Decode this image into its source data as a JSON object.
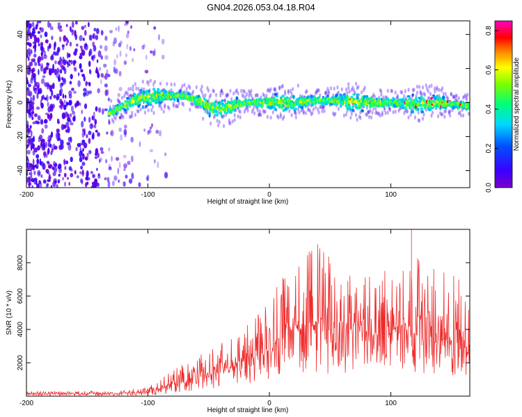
{
  "figure_title": "GN04.2026.053.04.18.R04",
  "colors": {
    "snr_line": "#ee2b2b",
    "spectrogram_low": "#7a1fe0",
    "spectrogram_high": "#ff0000"
  },
  "chart_data": [
    {
      "type": "heatmap",
      "title": "",
      "xlabel": "Height of straight line (km)",
      "ylabel": "Frequency (Hz)",
      "xlim": [
        -200,
        165
      ],
      "ylim": [
        -50,
        48
      ],
      "xticks": [
        -200,
        -100,
        0,
        100
      ],
      "yticks": [
        -40,
        -20,
        0,
        20,
        40
      ],
      "grid": false,
      "colorbar": {
        "label": "Normalized spectral amplitude",
        "range": [
          0,
          0.85
        ],
        "ticks": [
          0,
          0.2,
          0.4,
          0.6,
          0.8
        ],
        "tick_labels": [
          "0.0",
          "0.2",
          "0.4",
          "0.6",
          "0.8"
        ],
        "colormap": "rainbow (violet → blue → cyan → green → yellow → red → magenta)"
      },
      "regions": [
        {
          "x_range": [
            -200,
            -105
          ],
          "y_range": [
            -50,
            48
          ],
          "amplitude": 0.07,
          "description": "broadband noise across all frequencies"
        },
        {
          "x_range": [
            -105,
            165
          ],
          "y_range": [
            -6,
            6
          ],
          "amplitude": 0.35,
          "description": "signal band centered near 0 Hz"
        }
      ],
      "band_center": {
        "x": [
          -130,
          -110,
          -90,
          -70,
          -55,
          -45,
          -35,
          -20,
          0,
          20,
          40,
          60,
          80,
          100,
          120,
          140,
          165
        ],
        "y": [
          -6,
          2,
          4,
          4,
          0,
          -4,
          -3,
          0,
          0,
          0,
          1,
          1,
          0,
          0,
          -1,
          0,
          -2
        ]
      },
      "peak_amplitude": 0.85
    },
    {
      "type": "line",
      "title": "",
      "xlabel": "Height of straight line (km)",
      "ylabel": "SNR (10 * v/v)",
      "xlim": [
        -200,
        165
      ],
      "ylim": [
        0,
        10000
      ],
      "xticks": [
        -200,
        -100,
        0,
        100
      ],
      "yticks": [
        2000,
        4000,
        6000,
        8000
      ],
      "grid": false,
      "series": [
        {
          "color": "#ee2b2b",
          "x": [
            -200,
            -180,
            -160,
            -140,
            -120,
            -100,
            -90,
            -80,
            -70,
            -60,
            -50,
            -40,
            -30,
            -20,
            -10,
            0,
            10,
            20,
            30,
            40,
            50,
            60,
            70,
            80,
            90,
            100,
            110,
            120,
            130,
            140,
            150,
            165
          ],
          "y_mean": [
            150,
            150,
            150,
            150,
            180,
            280,
            450,
            700,
            900,
            1100,
            1300,
            1500,
            1800,
            2100,
            2400,
            2800,
            3600,
            4100,
            4300,
            4500,
            4400,
            4200,
            3900,
            3700,
            3700,
            3800,
            3900,
            3800,
            3600,
            3500,
            3300,
            3000
          ],
          "y_max": [
            300,
            300,
            300,
            300,
            350,
            600,
            1000,
            1500,
            2000,
            2400,
            2800,
            3200,
            3800,
            4300,
            5000,
            5800,
            7000,
            8000,
            8600,
            9300,
            8800,
            7800,
            7000,
            7200,
            7000,
            8000,
            7500,
            8800,
            8000,
            7600,
            7300,
            6500
          ],
          "y_min": [
            30,
            30,
            30,
            30,
            30,
            50,
            100,
            150,
            250,
            300,
            400,
            500,
            600,
            700,
            800,
            900,
            1200,
            1500,
            1400,
            1400,
            1300,
            1300,
            1300,
            1500,
            1500,
            1600,
            1500,
            1400,
            1300,
            1200,
            1100,
            1000
          ]
        }
      ],
      "annotations": [
        {
          "x": 117,
          "y": 10000,
          "label": "spike reaching top of axis"
        }
      ]
    }
  ]
}
